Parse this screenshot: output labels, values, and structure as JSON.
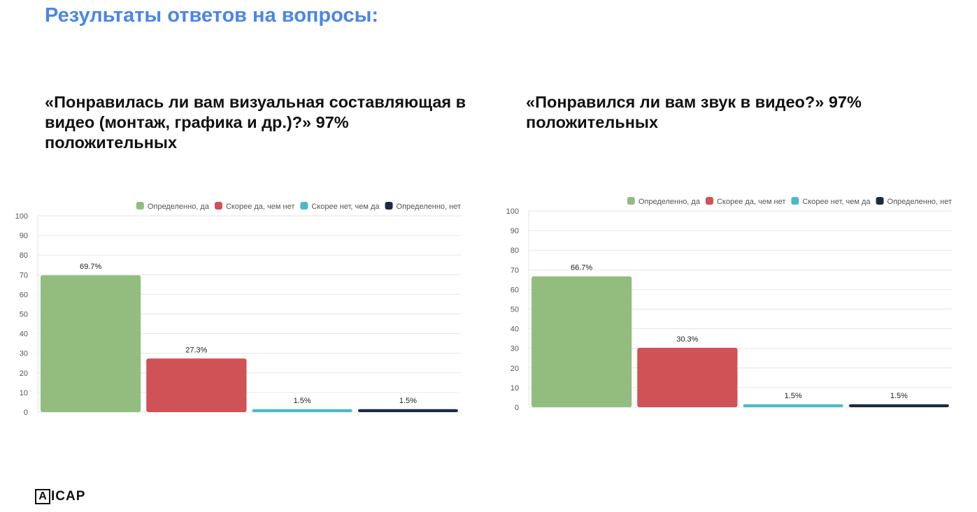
{
  "slide": {
    "title": "Результаты ответов на вопросы:",
    "logo": {
      "mark": "A",
      "text": "ICAP"
    }
  },
  "questions": [
    "«Понравилась ли вам визуальная составляющая в видео (монтаж, графика и др.)?» 97% положительных",
    "«Понравился ли вам звук в видео?» 97% положительных"
  ],
  "colors": {
    "title": "#4a86e8",
    "series": [
      "#93bd7f",
      "#cf5257",
      "#4bbac8",
      "#1e2a44"
    ],
    "grid": "#e6e6e6",
    "axis_text": "#555555"
  },
  "chart_data": [
    {
      "type": "bar",
      "title": "",
      "xlabel": "",
      "ylabel": "",
      "ylim": [
        0,
        100
      ],
      "yticks": [
        0,
        10,
        20,
        30,
        40,
        50,
        60,
        70,
        80,
        90,
        100
      ],
      "grid": true,
      "legend_position": "top-right",
      "series": [
        {
          "name": "Определенно, да",
          "values": [
            69.7
          ],
          "label": "69.7%"
        },
        {
          "name": "Скорее да, чем нет",
          "values": [
            27.3
          ],
          "label": "27.3%"
        },
        {
          "name": "Скорее нет, чем да",
          "values": [
            1.5
          ],
          "label": "1.5%"
        },
        {
          "name": "Определенно, нет",
          "values": [
            1.5
          ],
          "label": "1.5%"
        }
      ]
    },
    {
      "type": "bar",
      "title": "",
      "xlabel": "",
      "ylabel": "",
      "ylim": [
        0,
        100
      ],
      "yticks": [
        0,
        10,
        20,
        30,
        40,
        50,
        60,
        70,
        80,
        90,
        100
      ],
      "grid": true,
      "legend_position": "top-right",
      "series": [
        {
          "name": "Определенно, да",
          "values": [
            66.7
          ],
          "label": "66.7%"
        },
        {
          "name": "Скорее да, чем нет",
          "values": [
            30.3
          ],
          "label": "30.3%"
        },
        {
          "name": "Скорее нет, чем да",
          "values": [
            1.5
          ],
          "label": "1.5%"
        },
        {
          "name": "Определенно, нет",
          "values": [
            1.5
          ],
          "label": "1.5%"
        }
      ]
    }
  ]
}
